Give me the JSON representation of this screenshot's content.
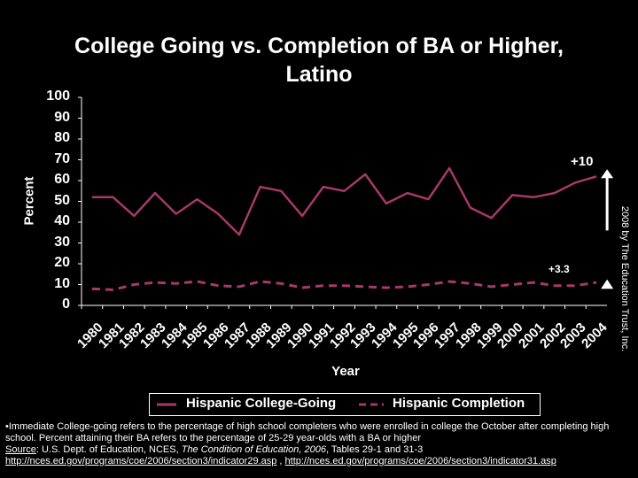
{
  "colors": {
    "background": "#000000",
    "college_going": "#a8386b",
    "completion": "#a8386b",
    "axis": "#ffffff"
  },
  "chart_data": {
    "type": "line",
    "title": "College Going vs. Completion of BA or Higher, Latino",
    "title_lines": [
      "College Going vs. Completion of BA or Higher,",
      "Latino"
    ],
    "xlabel": "Year",
    "ylabel": "Percent",
    "ylim": [
      0,
      100
    ],
    "yticks": [
      "0",
      "10",
      "20",
      "30",
      "40",
      "50",
      "60",
      "70",
      "80",
      "90",
      "100"
    ],
    "x": [
      "1980",
      "1981",
      "1982",
      "1983",
      "1984",
      "1985",
      "1986",
      "1987",
      "1988",
      "1989",
      "1990",
      "1991",
      "1992",
      "1993",
      "1994",
      "1995",
      "1996",
      "1997",
      "1998",
      "1999",
      "2000",
      "2001",
      "2002",
      "2003",
      "2004"
    ],
    "series": [
      {
        "name": "Hispanic College-Going",
        "style": "solid",
        "values": [
          52,
          52,
          43,
          54,
          44,
          51,
          44,
          34,
          57,
          55,
          43,
          57,
          55,
          63,
          49,
          54,
          51,
          66,
          47,
          42,
          53,
          52,
          54,
          59,
          62
        ]
      },
      {
        "name": "Hispanic Completion",
        "style": "dashed",
        "values": [
          8,
          7.5,
          10,
          11,
          10.5,
          11.5,
          9.5,
          9,
          11.5,
          10.5,
          8.5,
          9.5,
          9.5,
          9,
          8.5,
          9,
          10,
          11.5,
          10.5,
          9,
          10,
          11,
          9.5,
          9.5,
          11
        ]
      }
    ],
    "legend_position": "bottom",
    "annotations": [
      {
        "text": "+10"
      },
      {
        "text": "+3.3"
      }
    ],
    "grid": false
  },
  "credit": "2008 by The Education Trust, Inc.",
  "footnote": {
    "text": "•Immediate College-going refers to the percentage of high school completers who were enrolled in college the October after completing high school.  Percent attaining their BA refers to the percentage of 25-29 year-olds with a BA or higher",
    "source_label": "Source",
    "source_text": ":  U.S. Dept. of Education, NCES, ",
    "source_italic": "The Condition of Education, 2006",
    "source_tail": ", Tables 29-1 and 31-3",
    "link1": "http://nces.ed.gov/programs/coe/2006/section3/indicator29.asp",
    "link_sep": " , ",
    "link2": "http://nces.ed.gov/programs/coe/2006/section3/indicator31.asp"
  }
}
